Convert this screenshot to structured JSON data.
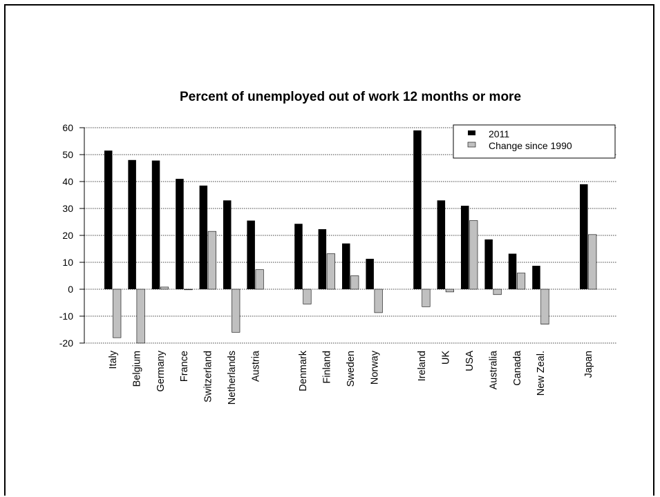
{
  "chart_data": {
    "type": "bar",
    "title": "Percent of unemployed out of work 12 months or more",
    "xlabel": "",
    "ylabel": "",
    "ylim": [
      -20,
      60
    ],
    "yticks": [
      60,
      50,
      40,
      30,
      20,
      10,
      0,
      -10,
      -20
    ],
    "grid": true,
    "legend_position": "top-right",
    "groups": [
      [
        "Italy",
        "Belgium",
        "Germany",
        "France",
        "Switzerland",
        "Netherlands",
        "Austria"
      ],
      [
        "Denmark",
        "Finland",
        "Sweden",
        "Norway"
      ],
      [
        "Ireland",
        "UK",
        "USA",
        "Australia",
        "Canada",
        "New Zeal."
      ],
      [
        "Japan"
      ]
    ],
    "categories": [
      "Italy",
      "Belgium",
      "Germany",
      "France",
      "Switzerland",
      "Netherlands",
      "Austria",
      "Denmark",
      "Finland",
      "Sweden",
      "Norway",
      "Ireland",
      "UK",
      "USA",
      "Australia",
      "Canada",
      "New Zeal.",
      "Japan"
    ],
    "series": [
      {
        "name": "2011",
        "color": "#000000",
        "values": [
          51.5,
          48,
          47.8,
          41,
          38.5,
          33,
          25.5,
          24.3,
          22.3,
          17,
          11.3,
          59,
          33,
          31,
          18.5,
          13.2,
          8.7,
          39
        ]
      },
      {
        "name": "Change since 1990",
        "color": "#c0c0c0",
        "values": [
          -18,
          -20,
          0.8,
          0,
          21.5,
          -16,
          7.3,
          -5.5,
          13.2,
          5,
          -8.7,
          -6.5,
          -1,
          25.5,
          -2,
          6,
          -13,
          20.3
        ]
      }
    ]
  }
}
